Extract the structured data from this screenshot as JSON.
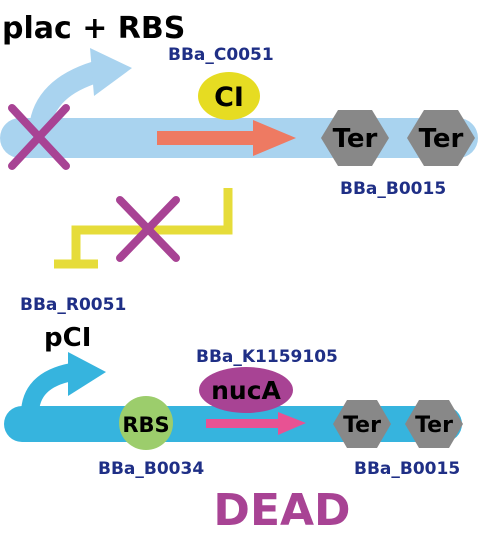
{
  "top_construct": {
    "title": "plac + RBS",
    "cds_id": "BBa_C0051",
    "cds_label": "CI",
    "terminator_labels": [
      "Ter",
      "Ter"
    ],
    "terminator_id": "BBa_B0015"
  },
  "repression": {
    "repressed_promoter_id": "BBa_R0051"
  },
  "bottom_construct": {
    "title": "pCI",
    "cds_id": "BBa_K1159105",
    "cds_label": "nucA",
    "rbs_label": "RBS",
    "rbs_id": "BBa_B0034",
    "terminator_labels": [
      "Ter",
      "Ter"
    ],
    "terminator_id": "BBa_B0015"
  },
  "outcome": "DEAD",
  "colors": {
    "dna_backbone_top": "#a9d3ef",
    "dna_backbone_bottom": "#36b4de",
    "promoter_arrow_top": "#a9d3ef",
    "promoter_arrow_bottom": "#36b4de",
    "cross_mark": "#a84394",
    "cds_arrow_top": "#ee7a62",
    "cds_arrow_bottom": "#e85293",
    "ci_protein": "#e6dc22",
    "nuca_protein": "#a84394",
    "rbs": "#9ccd6c",
    "terminator": "#888888",
    "repression_line": "#e6dc3a",
    "part_id_text": "#1f2f86",
    "outcome_text": "#a84394"
  }
}
